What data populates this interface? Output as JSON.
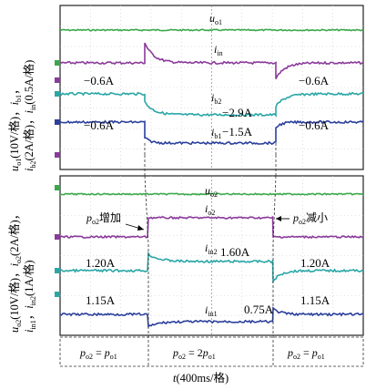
{
  "chart_data": [
    {
      "type": "line",
      "panel": "top",
      "ylabel_left": "u_o1(10V/格), i_b1, i_b2(2A/格), i_in(0.5A/格)",
      "ylabel_parts": [
        "u",
        "o1",
        "(10V/格)，",
        "i",
        "b1",
        "，",
        "i",
        "b2",
        "(2A/格)，",
        "i",
        "in",
        "(0.5A/格)"
      ],
      "series": [
        {
          "name": "u_o1",
          "label_main": "u",
          "label_sub": "o1",
          "color": "#3aa84a",
          "values": [
            0,
            0,
            0
          ],
          "annotations": []
        },
        {
          "name": "i_in",
          "label_main": "i",
          "label_sub": "in",
          "color": "#8a3a9a",
          "values": [
            -0.6,
            -0.6,
            -0.6
          ],
          "annotations": [
            "−0.6A",
            "−0.6A"
          ]
        },
        {
          "name": "i_b2",
          "label_main": "i",
          "label_sub": "b2",
          "color": "#2aa6a6",
          "values": [
            -0.6,
            -2.9,
            -0.6
          ],
          "annotations": [
            "−0.6A",
            "−2.9A",
            "−0.6A"
          ]
        },
        {
          "name": "i_b1",
          "label_main": "i",
          "label_sub": "b1",
          "color": "#2b3f9c",
          "values": [
            -0.6,
            -1.5,
            -0.6
          ],
          "annotations": [
            "−1.5A"
          ]
        }
      ]
    },
    {
      "type": "line",
      "panel": "bottom",
      "ylabel_parts": [
        "u",
        "o2",
        "(10V/格)，",
        "i",
        "o2",
        "(2A/格)，",
        "i",
        "in1",
        "，",
        "i",
        "in2",
        "(1A/格)"
      ],
      "series": [
        {
          "name": "u_o2",
          "label_main": "u",
          "label_sub": "o2",
          "color": "#3aa84a",
          "values": [
            0,
            0,
            0
          ],
          "annotations": []
        },
        {
          "name": "i_o2",
          "label_main": "i",
          "label_sub": "o2",
          "color": "#8a3a9a",
          "values": [
            1,
            2,
            1
          ],
          "annotations": []
        },
        {
          "name": "i_in2",
          "label_main": "i",
          "label_sub": "in2",
          "color": "#2aa6a6",
          "values": [
            1.2,
            1.6,
            1.2
          ],
          "annotations": [
            "1.20A",
            "1.60A",
            "1.20A"
          ]
        },
        {
          "name": "i_in1",
          "label_main": "i",
          "label_sub": "in1",
          "color": "#2b3f9c",
          "values": [
            1.15,
            0.75,
            1.15
          ],
          "annotations": [
            "1.15A",
            "0.75A",
            "1.15A"
          ]
        }
      ],
      "events": [
        {
          "text_main": "p",
          "text_sub": "o2",
          "text_tail": "增加"
        },
        {
          "text_main": "p",
          "text_sub": "o2",
          "text_tail": "减小"
        }
      ]
    }
  ],
  "regions": [
    {
      "main": "p",
      "sub1": "o2",
      "mid": " = ",
      "main2": "p",
      "sub2": "o1"
    },
    {
      "main": "p",
      "sub1": "o2",
      "mid": " = 2",
      "main2": "p",
      "sub2": "o1"
    },
    {
      "main": "p",
      "sub1": "o2",
      "mid": " = ",
      "main2": "p",
      "sub2": "o1"
    }
  ],
  "xlabel": {
    "main": "t",
    "tail": "(400ms/格)"
  },
  "annotations": {
    "top_in_left": "−0.6A",
    "top_in_right": "−0.6A",
    "top_b2_mid": "−2.9A",
    "top_b1_left": "−0.6A",
    "top_b1_mid": "−1.5A",
    "top_b1_right": "−0.6A",
    "bot_in2_left": "1.20A",
    "bot_in2_mid": "1.60A",
    "bot_in2_right": "1.20A",
    "bot_in1_left": "1.15A",
    "bot_in1_mid": "0.75A",
    "bot_in1_right": "1.15A"
  }
}
